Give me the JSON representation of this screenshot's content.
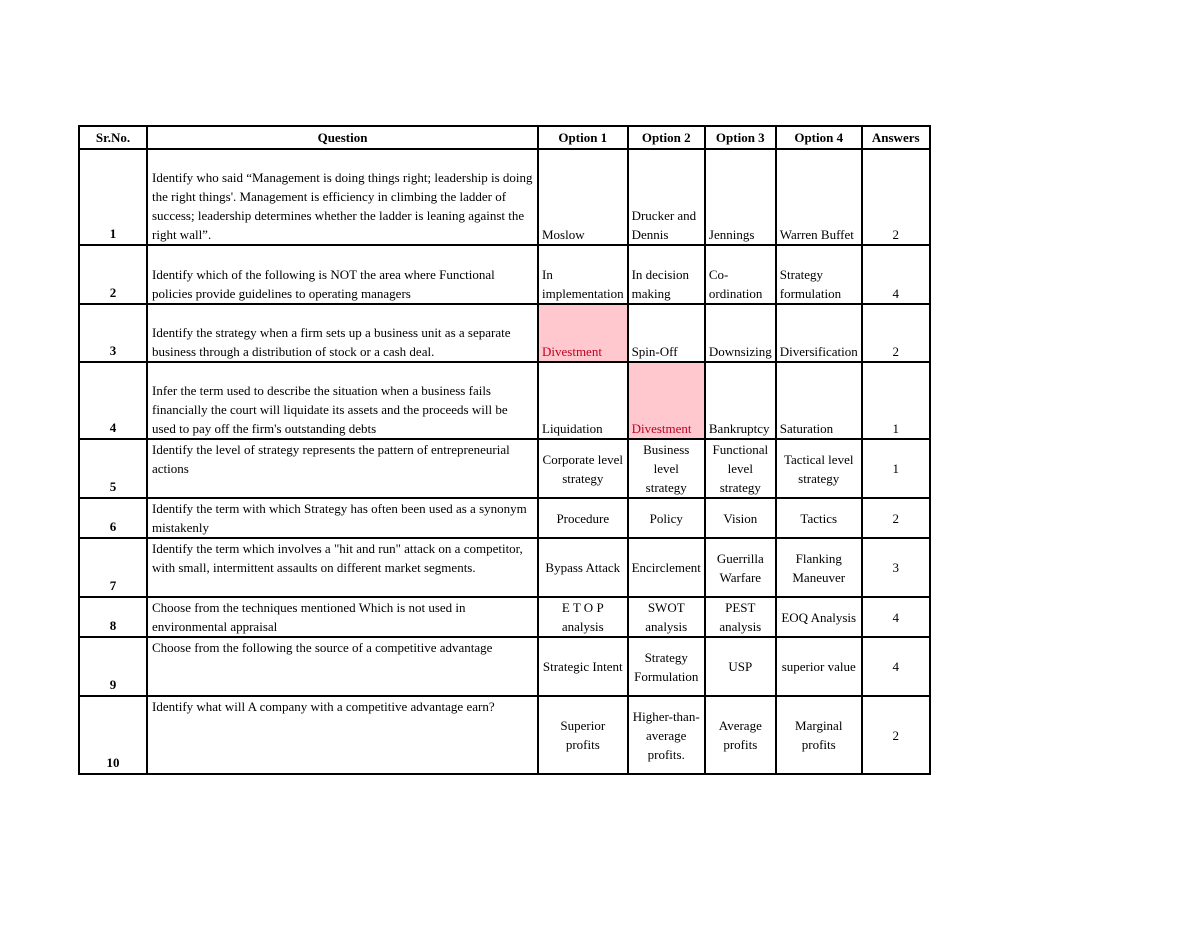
{
  "table": {
    "columns": [
      "Sr.No.",
      "Question",
      "Option 1",
      "Option 2",
      "Option 3",
      "Option 4",
      "Answers"
    ],
    "highlight_colors": {
      "fill": "#ffc7ce",
      "text": "#c00021"
    },
    "rows": [
      {
        "sr": "1",
        "question": "Identify who said “Management is doing things right; leadership is doing the right things'. Management is efficiency in climbing the ladder of success; leadership determines whether the ladder is leaning against the right wall”.",
        "options": [
          "Moslow",
          "Drucker and Dennis",
          "Jennings",
          "Warren Buffet"
        ],
        "answer": "2",
        "highlighted_option": null,
        "align": "left"
      },
      {
        "sr": "2",
        "question": "Identify which of the following is NOT the area where Functional policies provide guidelines to operating managers",
        "options": [
          "In implementation",
          "In decision making",
          "Co-ordination",
          "Strategy formulation"
        ],
        "answer": "4",
        "highlighted_option": null,
        "align": "left"
      },
      {
        "sr": "3",
        "question": "Identify the strategy when a firm sets up a business unit as a separate business through a distribution of stock or a cash deal.",
        "options": [
          "Divestment",
          "Spin-Off",
          "Downsizing",
          "Diversification"
        ],
        "answer": "2",
        "highlighted_option": 1,
        "align": "left"
      },
      {
        "sr": "4",
        "question": "Infer the term used to describe the situation when a business fails financially the court will liquidate its assets and the proceeds will be used to pay off the firm's outstanding debts",
        "options": [
          "Liquidation",
          "Divestment",
          "Bankruptcy",
          "Saturation"
        ],
        "answer": "1",
        "highlighted_option": 2,
        "align": "left"
      },
      {
        "sr": "5",
        "question": "Identify the level of strategy represents the pattern of entrepreneurial actions",
        "options": [
          "Corporate level strategy",
          "Business level strategy",
          "Functional level strategy",
          "Tactical level strategy"
        ],
        "answer": "1",
        "highlighted_option": null,
        "align": "center"
      },
      {
        "sr": "6",
        "question": "Identify the term with which Strategy has often been used as a synonym mistakenly",
        "options": [
          "Procedure",
          "Policy",
          "Vision",
          "Tactics"
        ],
        "answer": "2",
        "highlighted_option": null,
        "align": "center"
      },
      {
        "sr": "7",
        "question": "Identify the term which involves a \"hit and run\" attack on a competitor, with small, intermittent assaults on different market segments.",
        "options": [
          "Bypass Attack",
          "Encirclement",
          "Guerrilla Warfare",
          "Flanking Maneuver"
        ],
        "answer": "3",
        "highlighted_option": null,
        "align": "center"
      },
      {
        "sr": "8",
        "question": "Choose from the techniques mentioned Which is not used in environmental appraisal",
        "options": [
          "E T O P analysis",
          "SWOT analysis",
          "PEST analysis",
          "EOQ Analysis"
        ],
        "answer": "4",
        "highlighted_option": null,
        "align": "center"
      },
      {
        "sr": "9",
        "question": "Choose from the following the source of a competitive advantage",
        "options": [
          "Strategic Intent",
          "Strategy Formulation",
          "USP",
          "superior value"
        ],
        "answer": "4",
        "highlighted_option": null,
        "align": "center"
      },
      {
        "sr": "10",
        "question": "Identify what will A company with a competitive advantage earn?",
        "options": [
          "Superior profits",
          "Higher-than-average profits.",
          "Average profits",
          "Marginal profits"
        ],
        "answer": "2",
        "highlighted_option": null,
        "align": "center"
      }
    ]
  }
}
